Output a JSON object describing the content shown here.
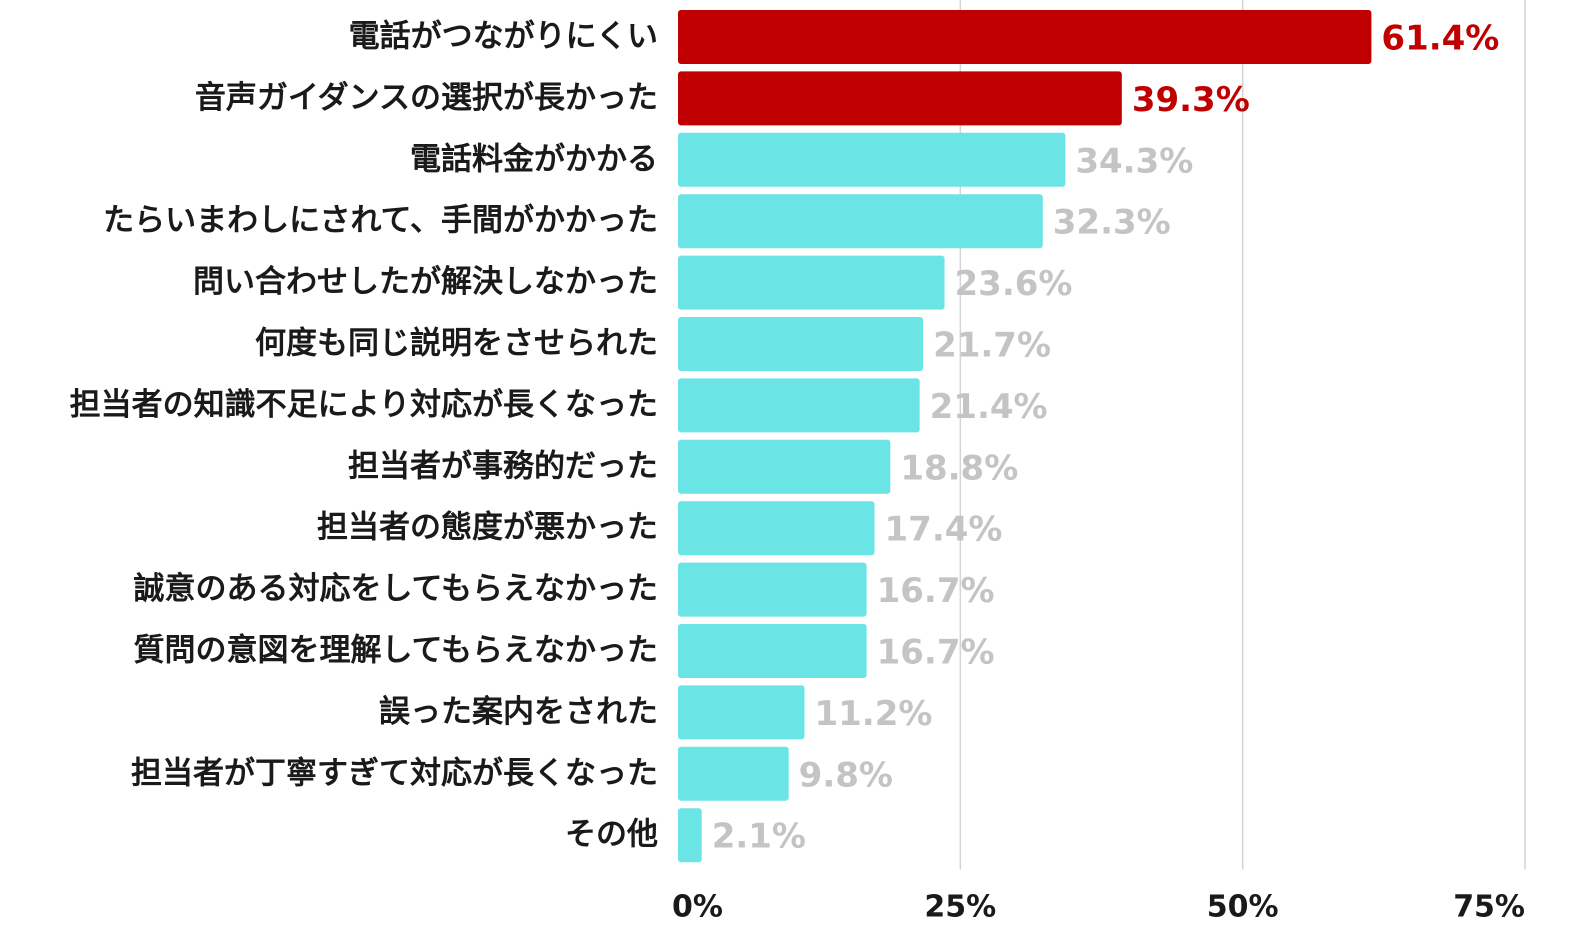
{
  "chart_data": {
    "type": "bar",
    "orientation": "horizontal",
    "categories": [
      "電話がつながりにくい",
      "音声ガイダンスの選択が長かった",
      "電話料金がかかる",
      "たらいまわしにされて、手間がかかった",
      "問い合わせしたが解決しなかった",
      "何度も同じ説明をさせられた",
      "担当者の知識不足により対応が長くなった",
      "担当者が事務的だった",
      "担当者の態度が悪かった",
      "誠意のある対応をしてもらえなかった",
      "質問の意図を理解してもらえなかった",
      "誤った案内をされた",
      "担当者が丁寧すぎて対応が長くなった",
      "その他"
    ],
    "values": [
      61.4,
      39.3,
      34.3,
      32.3,
      23.6,
      21.7,
      21.4,
      18.8,
      17.4,
      16.7,
      16.7,
      11.2,
      9.8,
      2.1
    ],
    "value_labels": [
      "61.4%",
      "39.3%",
      "34.3%",
      "32.3%",
      "23.6%",
      "21.7%",
      "21.4%",
      "18.8%",
      "17.4%",
      "16.7%",
      "16.7%",
      "11.2%",
      "9.8%",
      "2.1%"
    ],
    "highlight_count": 2,
    "xlim": [
      0,
      75
    ],
    "xticks": [
      0,
      25,
      50,
      75
    ],
    "xtick_labels": [
      "0%",
      "25%",
      "50%",
      "75%"
    ],
    "grid": true,
    "legend": "none",
    "colors": {
      "highlight_bar": "#c00000",
      "highlight_label": "#c00000",
      "normal_bar": "#6be4e6",
      "normal_label": "#c4c4c4",
      "gridline": "#d4d4d4"
    }
  }
}
